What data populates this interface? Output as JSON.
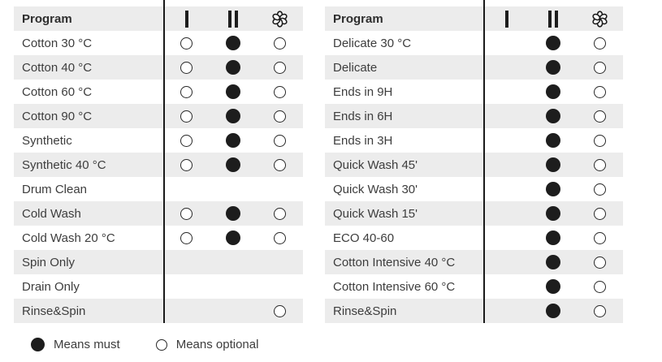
{
  "colors": {
    "row_alt_background": "#ececec",
    "symbol_ink": "#1d1d1d",
    "text": "#3d3d3d"
  },
  "symbols": {
    "must": "filled-circle",
    "optional": "open-circle",
    "column_icons": [
      "bar-i-icon",
      "bar-ii-icon",
      "softener-flower-icon"
    ]
  },
  "legend": {
    "must_label": "Means must",
    "optional_label": "Means optional"
  },
  "tables": [
    {
      "header": {
        "program": "Program",
        "columns": [
          "I",
          "II",
          "flower"
        ]
      },
      "rows": [
        {
          "program": "Cotton 30 °C",
          "cols": [
            "optional",
            "must",
            "optional"
          ]
        },
        {
          "program": "Cotton 40 °C",
          "cols": [
            "optional",
            "must",
            "optional"
          ]
        },
        {
          "program": "Cotton 60 °C",
          "cols": [
            "optional",
            "must",
            "optional"
          ]
        },
        {
          "program": "Cotton 90 °C",
          "cols": [
            "optional",
            "must",
            "optional"
          ]
        },
        {
          "program": "Synthetic",
          "cols": [
            "optional",
            "must",
            "optional"
          ]
        },
        {
          "program": "Synthetic 40 °C",
          "cols": [
            "optional",
            "must",
            "optional"
          ]
        },
        {
          "program": "Drum Clean",
          "cols": [
            "",
            "",
            ""
          ]
        },
        {
          "program": "Cold Wash",
          "cols": [
            "optional",
            "must",
            "optional"
          ]
        },
        {
          "program": "Cold Wash 20 °C",
          "cols": [
            "optional",
            "must",
            "optional"
          ]
        },
        {
          "program": "Spin Only",
          "cols": [
            "",
            "",
            ""
          ]
        },
        {
          "program": "Drain Only",
          "cols": [
            "",
            "",
            ""
          ]
        },
        {
          "program": "Rinse&Spin",
          "cols": [
            "",
            "",
            "optional"
          ]
        }
      ]
    },
    {
      "header": {
        "program": "Program",
        "columns": [
          "I",
          "II",
          "flower"
        ]
      },
      "rows": [
        {
          "program": "Delicate 30 °C",
          "cols": [
            "",
            "must",
            "optional"
          ]
        },
        {
          "program": "Delicate",
          "cols": [
            "",
            "must",
            "optional"
          ]
        },
        {
          "program": "Ends in 9H",
          "cols": [
            "",
            "must",
            "optional"
          ]
        },
        {
          "program": "Ends in 6H",
          "cols": [
            "",
            "must",
            "optional"
          ]
        },
        {
          "program": "Ends in 3H",
          "cols": [
            "",
            "must",
            "optional"
          ]
        },
        {
          "program": "Quick Wash 45'",
          "cols": [
            "",
            "must",
            "optional"
          ]
        },
        {
          "program": "Quick Wash 30'",
          "cols": [
            "",
            "must",
            "optional"
          ]
        },
        {
          "program": "Quick Wash 15'",
          "cols": [
            "",
            "must",
            "optional"
          ]
        },
        {
          "program": "ECO 40-60",
          "cols": [
            "",
            "must",
            "optional"
          ]
        },
        {
          "program": "Cotton Intensive 40 °C",
          "cols": [
            "",
            "must",
            "optional"
          ]
        },
        {
          "program": "Cotton Intensive 60 °C",
          "cols": [
            "",
            "must",
            "optional"
          ]
        },
        {
          "program": "Rinse&Spin",
          "cols": [
            "",
            "must",
            "optional"
          ]
        }
      ]
    }
  ]
}
